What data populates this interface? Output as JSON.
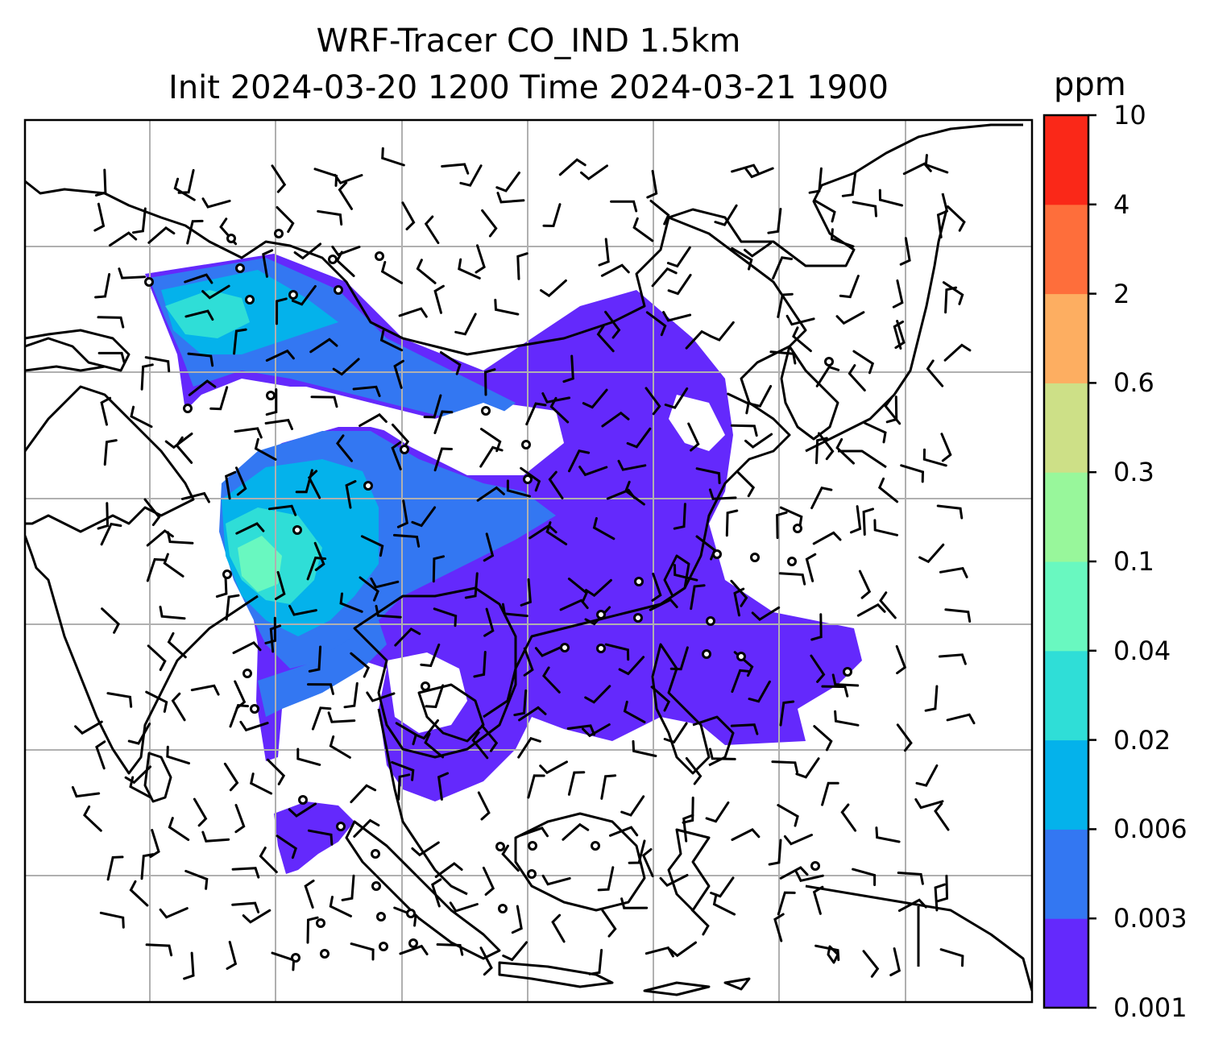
{
  "title": {
    "line1": "WRF-Tracer CO_IND 1.5km",
    "line2": "Init 2024-03-20 1200 Time 2024-03-21 1900"
  },
  "colorbar": {
    "unit": "ppm",
    "levels": [
      "0.001",
      "0.003",
      "0.006",
      "0.02",
      "0.04",
      "0.1",
      "0.3",
      "0.6",
      "2",
      "4",
      "10"
    ],
    "colors": [
      "#6429fc",
      "#3377f2",
      "#04b2eb",
      "#2fded7",
      "#69f8c0",
      "#98f79b",
      "#cde087",
      "#fdae61",
      "#fe6e3b",
      "#fa2818"
    ]
  },
  "map": {
    "plume_colors": {
      "lowest": "#6429fc",
      "low": "#3377f2",
      "mid": "#04b2eb",
      "high": "#2fded7",
      "higher": "#69f8c0"
    },
    "gridline_color": "#b0b0b0",
    "coastline_color": "#000000",
    "wind_barbs": "wind-barbs",
    "calm_marker": "calm-circle"
  }
}
